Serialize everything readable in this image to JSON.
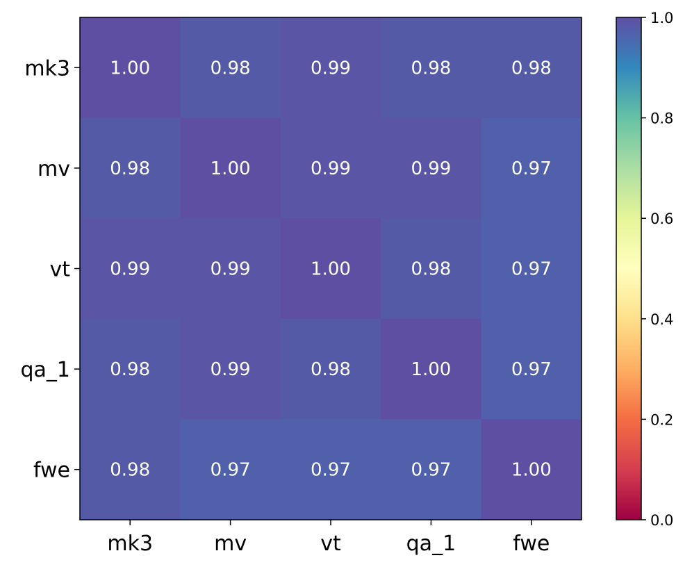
{
  "chart_data": {
    "type": "heatmap",
    "title": "",
    "xlabel": "",
    "ylabel": "",
    "x_labels": [
      "mk3",
      "mv",
      "vt",
      "qa_1",
      "fwe"
    ],
    "y_labels": [
      "mk3",
      "mv",
      "vt",
      "qa_1",
      "fwe"
    ],
    "values": [
      [
        1.0,
        0.98,
        0.99,
        0.98,
        0.98
      ],
      [
        0.98,
        1.0,
        0.99,
        0.99,
        0.97
      ],
      [
        0.99,
        0.99,
        1.0,
        0.98,
        0.97
      ],
      [
        0.98,
        0.99,
        0.98,
        1.0,
        0.97
      ],
      [
        0.98,
        0.97,
        0.97,
        0.97,
        1.0
      ]
    ],
    "value_format": "0.00",
    "colormap": "Spectral",
    "colorbar": {
      "vmin": 0.0,
      "vmax": 1.0,
      "ticks": [
        0.0,
        0.2,
        0.4,
        0.6,
        0.8,
        1.0
      ],
      "tick_labels": [
        "0.0",
        "0.2",
        "0.4",
        "0.6",
        "0.8",
        "1.0"
      ],
      "placement": "right"
    }
  }
}
